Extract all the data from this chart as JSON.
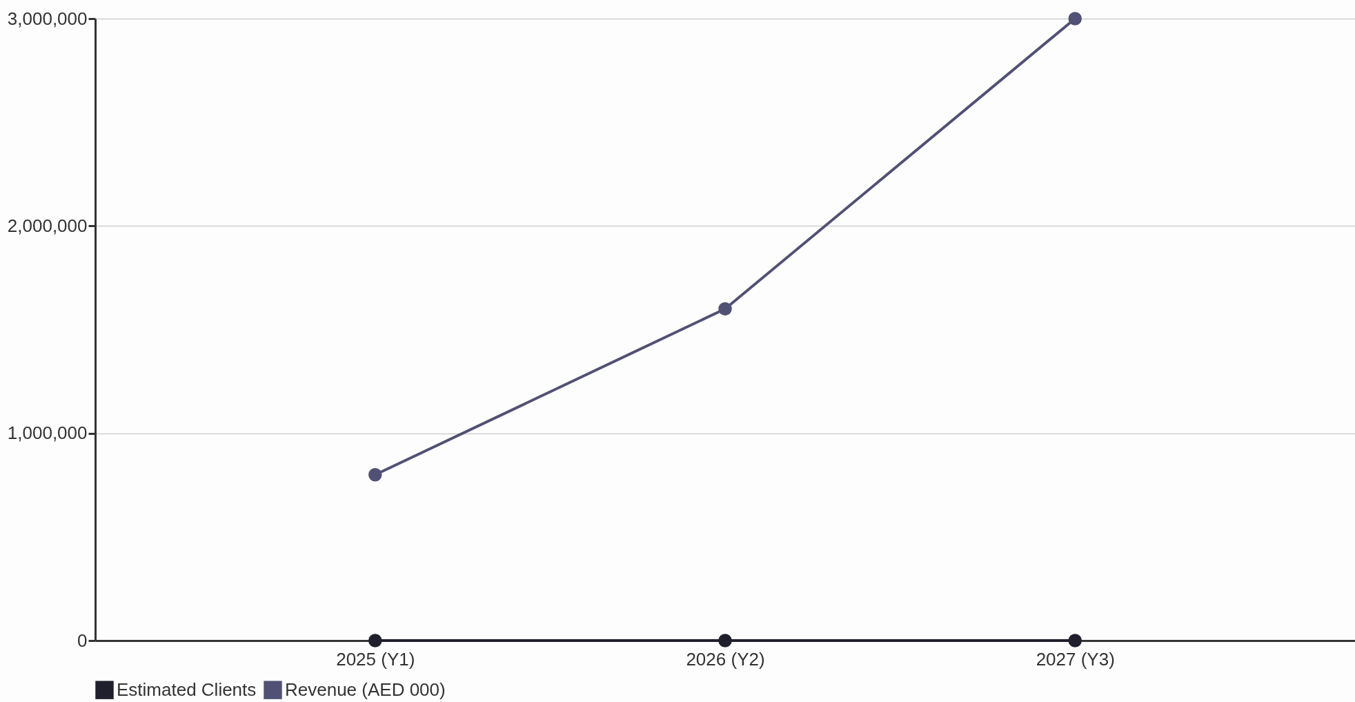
{
  "chart_data": {
    "type": "line",
    "categories": [
      "2025 (Y1)",
      "2026 (Y2)",
      "2027 (Y3)"
    ],
    "series": [
      {
        "name": "Estimated Clients",
        "color": "#1f1f2e",
        "values": [
          0,
          0,
          0
        ]
      },
      {
        "name": "Revenue (AED 000)",
        "color": "#515175",
        "values": [
          800000,
          1600000,
          3000000
        ]
      }
    ],
    "ylim": [
      0,
      3000000
    ],
    "yticks": [
      0,
      {
        "value": 1000000,
        "label": "1,000,000"
      },
      {
        "value": 2000000,
        "label": "2,000,000"
      },
      {
        "value": 3000000,
        "label": "3,000,000"
      }
    ],
    "grid": "y",
    "legend": "bottom",
    "marker": "circle",
    "line_style": "solid"
  }
}
